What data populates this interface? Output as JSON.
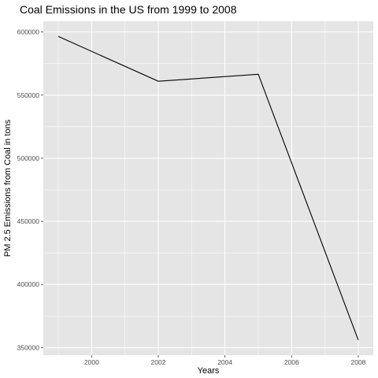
{
  "chart_data": {
    "type": "line",
    "title": "Coal Emissions in the US from 1999 to 2008",
    "xlabel": "Years",
    "ylabel": "PM 2.5 Emissions from Coal in tons",
    "x": [
      1999,
      2002,
      2005,
      2008
    ],
    "values": [
      596500,
      561000,
      566500,
      356000
    ],
    "xlim": [
      1998.55,
      2008.45
    ],
    "ylim": [
      344000,
      608500
    ],
    "x_ticks": [
      2000,
      2002,
      2004,
      2006,
      2008
    ],
    "x_tick_labels": [
      "2000",
      "2002",
      "2004",
      "2006",
      "2008"
    ],
    "y_ticks": [
      350000,
      400000,
      450000,
      500000,
      550000,
      600000
    ],
    "y_tick_labels": [
      "350000",
      "400000",
      "450000",
      "500000",
      "550000",
      "600000"
    ],
    "grid": true,
    "legend": "none",
    "colors": {
      "panel_background": "#e5e5e5",
      "grid_major": "#ffffff",
      "line": "#000000",
      "tick_label": "#4d4d4d"
    }
  }
}
